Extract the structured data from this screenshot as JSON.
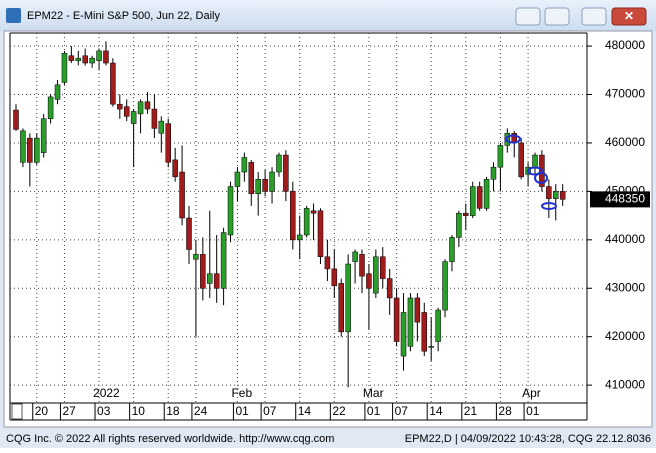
{
  "window": {
    "title": "EPM22 - E-Mini S&P 500, Jun 22, Daily",
    "footer_left": "CQG Inc. © 2022 All rights reserved worldwide. http://www.cqg.com",
    "footer_right": "EPM22,D | 04/09/2022 10:43:28, CQG 22.12.8036"
  },
  "chart_data": {
    "type": "candlestick",
    "up_color": "#2a9d2a",
    "down_color": "#a01c1c",
    "grid": true,
    "ylim": [
      402800,
      482700
    ],
    "yticks": [
      410000,
      420000,
      430000,
      440000,
      450000,
      460000,
      470000,
      480000
    ],
    "categories": [
      null,
      null,
      null,
      "20",
      null,
      null,
      null,
      "27",
      null,
      null,
      null,
      null,
      "03",
      null,
      null,
      null,
      null,
      "10",
      null,
      null,
      null,
      null,
      "18",
      null,
      null,
      null,
      "24",
      null,
      null,
      null,
      null,
      null,
      "01",
      null,
      null,
      null,
      "07",
      null,
      null,
      null,
      null,
      "14",
      null,
      null,
      null,
      null,
      "22",
      null,
      null,
      null,
      null,
      "01",
      null,
      null,
      null,
      "07",
      null,
      null,
      null,
      null,
      "14",
      null,
      null,
      null,
      null,
      "21",
      null,
      null,
      null,
      null,
      "28",
      null,
      null,
      null,
      "01",
      null,
      null,
      null,
      null,
      null
    ],
    "months": [
      null,
      null,
      null,
      null,
      null,
      null,
      null,
      null,
      null,
      null,
      null,
      null,
      "2022",
      null,
      null,
      null,
      null,
      null,
      null,
      null,
      null,
      null,
      null,
      null,
      null,
      null,
      null,
      null,
      null,
      null,
      null,
      null,
      "Feb",
      null,
      null,
      null,
      null,
      null,
      null,
      null,
      null,
      null,
      null,
      null,
      null,
      null,
      null,
      null,
      null,
      null,
      null,
      "Mar",
      null,
      null,
      null,
      null,
      null,
      null,
      null,
      null,
      null,
      null,
      null,
      null,
      null,
      null,
      null,
      null,
      null,
      null,
      null,
      null,
      null,
      null,
      "Apr",
      null,
      null,
      null,
      null,
      null
    ],
    "open": [
      466800,
      456000,
      461000,
      456000,
      458000,
      465000,
      469000,
      472500,
      478000,
      477000,
      478000,
      476500,
      477000,
      479000,
      476500,
      468000,
      467500,
      464000,
      466000,
      468500,
      467000,
      462000,
      464000,
      456500,
      454000,
      444500,
      436000,
      437000,
      431000,
      433000,
      430000,
      441000,
      451000,
      454000,
      456000,
      449500,
      452500,
      450000,
      454000,
      457500,
      450000,
      440000,
      441000,
      446000,
      446000,
      436500,
      434000,
      431000,
      421000,
      435500,
      437000,
      433000,
      429000,
      436500,
      432000,
      428000,
      416000,
      418000,
      428000,
      425000,
      418000,
      419000,
      425500,
      435500,
      440500,
      445500,
      445000,
      451000,
      446500,
      452500,
      455000,
      459500,
      462000,
      460000,
      453500,
      455000,
      457500,
      451000,
      448500,
      450000
    ],
    "high": [
      468000,
      463000,
      462000,
      462000,
      466000,
      470000,
      473000,
      479000,
      480000,
      479000,
      479500,
      478000,
      479500,
      481000,
      477500,
      470000,
      469000,
      467000,
      469000,
      470500,
      470000,
      465500,
      465000,
      459000,
      459500,
      447000,
      440000,
      440500,
      446000,
      441000,
      442500,
      452000,
      455000,
      458000,
      456500,
      454000,
      454500,
      455000,
      458000,
      458500,
      452000,
      445000,
      447000,
      447500,
      446500,
      440000,
      438000,
      432000,
      437000,
      438000,
      438000,
      435000,
      438000,
      438500,
      434000,
      430000,
      429000,
      429000,
      429000,
      427000,
      424000,
      426000,
      436000,
      441000,
      446000,
      447500,
      452000,
      452000,
      453000,
      456000,
      460000,
      463000,
      462500,
      461000,
      456000,
      458000,
      458500,
      452500,
      451500,
      451500
    ],
    "low": [
      462500,
      455000,
      451000,
      455500,
      457000,
      464000,
      468000,
      472000,
      476500,
      476000,
      476000,
      475500,
      475000,
      476000,
      467500,
      465000,
      464500,
      455000,
      462000,
      466000,
      461000,
      458000,
      455000,
      452000,
      443000,
      435000,
      420000,
      427500,
      428000,
      427000,
      426500,
      439500,
      448000,
      452000,
      447000,
      445000,
      449000,
      447500,
      453000,
      448000,
      438000,
      436000,
      440500,
      440000,
      435000,
      431500,
      428000,
      420000,
      409500,
      431000,
      429000,
      421500,
      428000,
      430000,
      424500,
      418000,
      413000,
      417000,
      419000,
      416000,
      415000,
      417000,
      424000,
      433500,
      438500,
      442000,
      444500,
      446000,
      446000,
      450000,
      450000,
      458000,
      457000,
      452500,
      451000,
      453500,
      450000,
      444500,
      444000,
      447000
    ],
    "close": [
      462800,
      462500,
      456000,
      461000,
      465000,
      469500,
      472000,
      478500,
      477000,
      477500,
      476500,
      477500,
      479000,
      476500,
      468000,
      467000,
      465500,
      466500,
      468500,
      467000,
      463000,
      464500,
      456000,
      453000,
      444500,
      438000,
      437000,
      430000,
      433000,
      430000,
      441500,
      451000,
      454000,
      457000,
      449500,
      452500,
      450000,
      454000,
      457500,
      450000,
      440000,
      441000,
      446500,
      445500,
      436500,
      434000,
      430500,
      421000,
      435000,
      437500,
      432500,
      430000,
      436500,
      432000,
      428000,
      419000,
      425000,
      428000,
      423000,
      417000,
      418000,
      425500,
      435500,
      440500,
      445500,
      445000,
      451000,
      446500,
      452500,
      455000,
      459500,
      462000,
      460000,
      453000,
      455000,
      457500,
      451000,
      448500,
      450000,
      448350
    ]
  }
}
